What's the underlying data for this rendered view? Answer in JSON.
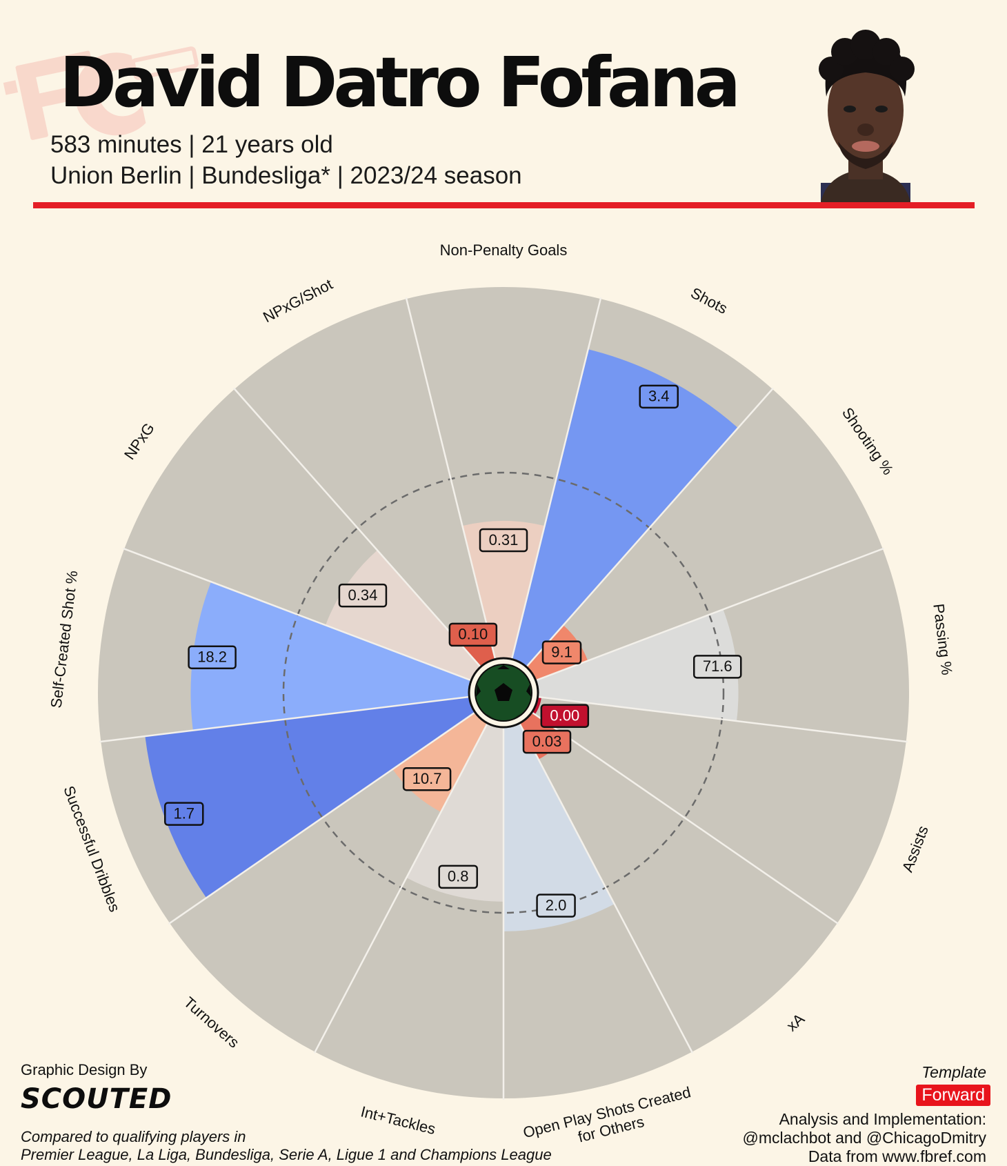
{
  "player": {
    "name": "David Datro Fofana",
    "subtitle_line1": "583 minutes | 21 years old",
    "subtitle_line2": "Union Berlin | Bundesliga* | 2023/24 season"
  },
  "colors": {
    "accent": "#e41e26",
    "background": "#fcf5e6",
    "slice_background": "#cac6bc",
    "badge": "#e8141c"
  },
  "chart_data": {
    "type": "radar-pizza",
    "title": "",
    "value_unit": "percentile",
    "reference_ring_percentile": 50,
    "categories": [
      "Non-Penalty Goals",
      "Shots",
      "Shooting %",
      "Passing %",
      "Assists",
      "xA",
      "Open Play Shots Created for Others",
      "Int+Tackles",
      "Turnovers",
      "Successful Dribbles",
      "Self-Created Shot %",
      "NPxG",
      "NPxG/Shot"
    ],
    "labels": [
      "0.31",
      "3.4",
      "9.1",
      "71.6",
      "0.00",
      "0.03",
      "2.0",
      "0.8",
      "10.7",
      "1.7",
      "18.2",
      "0.34",
      "0.10"
    ],
    "percentiles": [
      37,
      86,
      15,
      54,
      1,
      11,
      55,
      47,
      27,
      88,
      75,
      42,
      10
    ],
    "colors": [
      "#eccfc1",
      "#7597f2",
      "#f0876b",
      "#dcdcda",
      "#c1102e",
      "#e8725e",
      "#d2dbe6",
      "#dfdad5",
      "#f4b698",
      "#6280e8",
      "#8badfb",
      "#e6d7cf",
      "#df5f4c"
    ],
    "label_colors": [
      "#eccfc1",
      "#7597f2",
      "#f0876b",
      "#dcdcda",
      "#c1102e",
      "#e8725e",
      "#d2dbe6",
      "#dfdad5",
      "#f4b698",
      "#6280e8",
      "#8badfb",
      "#e6d7cf",
      "#df5f4c"
    ],
    "label_text_colors": [
      "#111",
      "#111",
      "#111",
      "#111",
      "#ffffff",
      "#111",
      "#111",
      "#111",
      "#111",
      "#111",
      "#111",
      "#111",
      "#111"
    ]
  },
  "footer": {
    "credit_label": "Graphic Design By",
    "credit_logo": "SCOUTED",
    "comparison_line1": "Compared to qualifying players in",
    "comparison_line2": "Premier League, La Liga, Bundesliga, Serie A, Ligue 1 and Champions League",
    "template_label": "Template",
    "template_value": "Forward",
    "analysis_label": "Analysis and Implementation:",
    "analysis_names": "@mclachbot and @ChicagoDmitry",
    "data_source": "Data from www.fbref.com"
  },
  "icons": {
    "club_logo": "union-berlin-logo-watermark",
    "player_photo": "player-headshot",
    "center": "soccer-ball-icon"
  }
}
